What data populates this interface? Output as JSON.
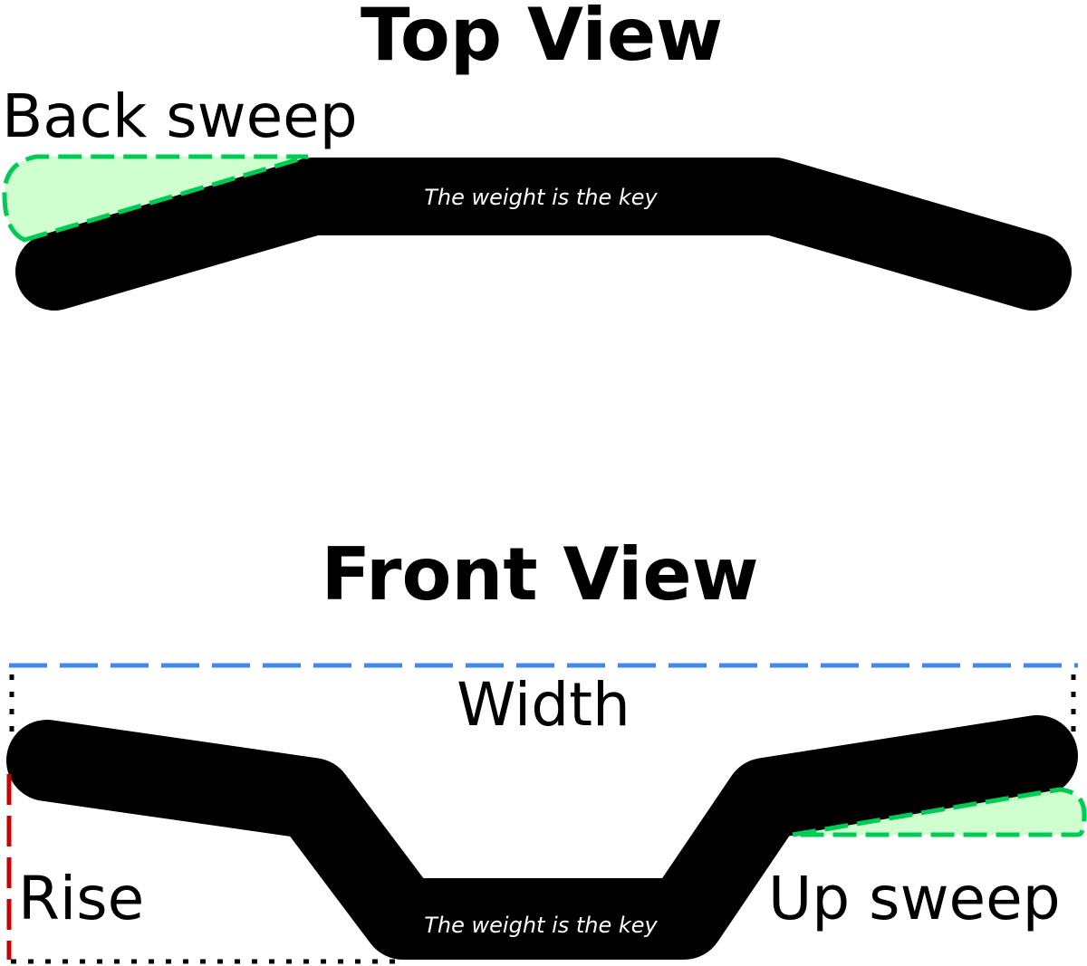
{
  "top_view": {
    "title": "Top View",
    "back_sweep_label": "Back sweep",
    "watermark": "The weight is the key"
  },
  "front_view": {
    "title": "Front View",
    "width_label": "Width",
    "rise_label": "Rise",
    "up_sweep_label": "Up sweep",
    "watermark": "The weight is the key"
  }
}
